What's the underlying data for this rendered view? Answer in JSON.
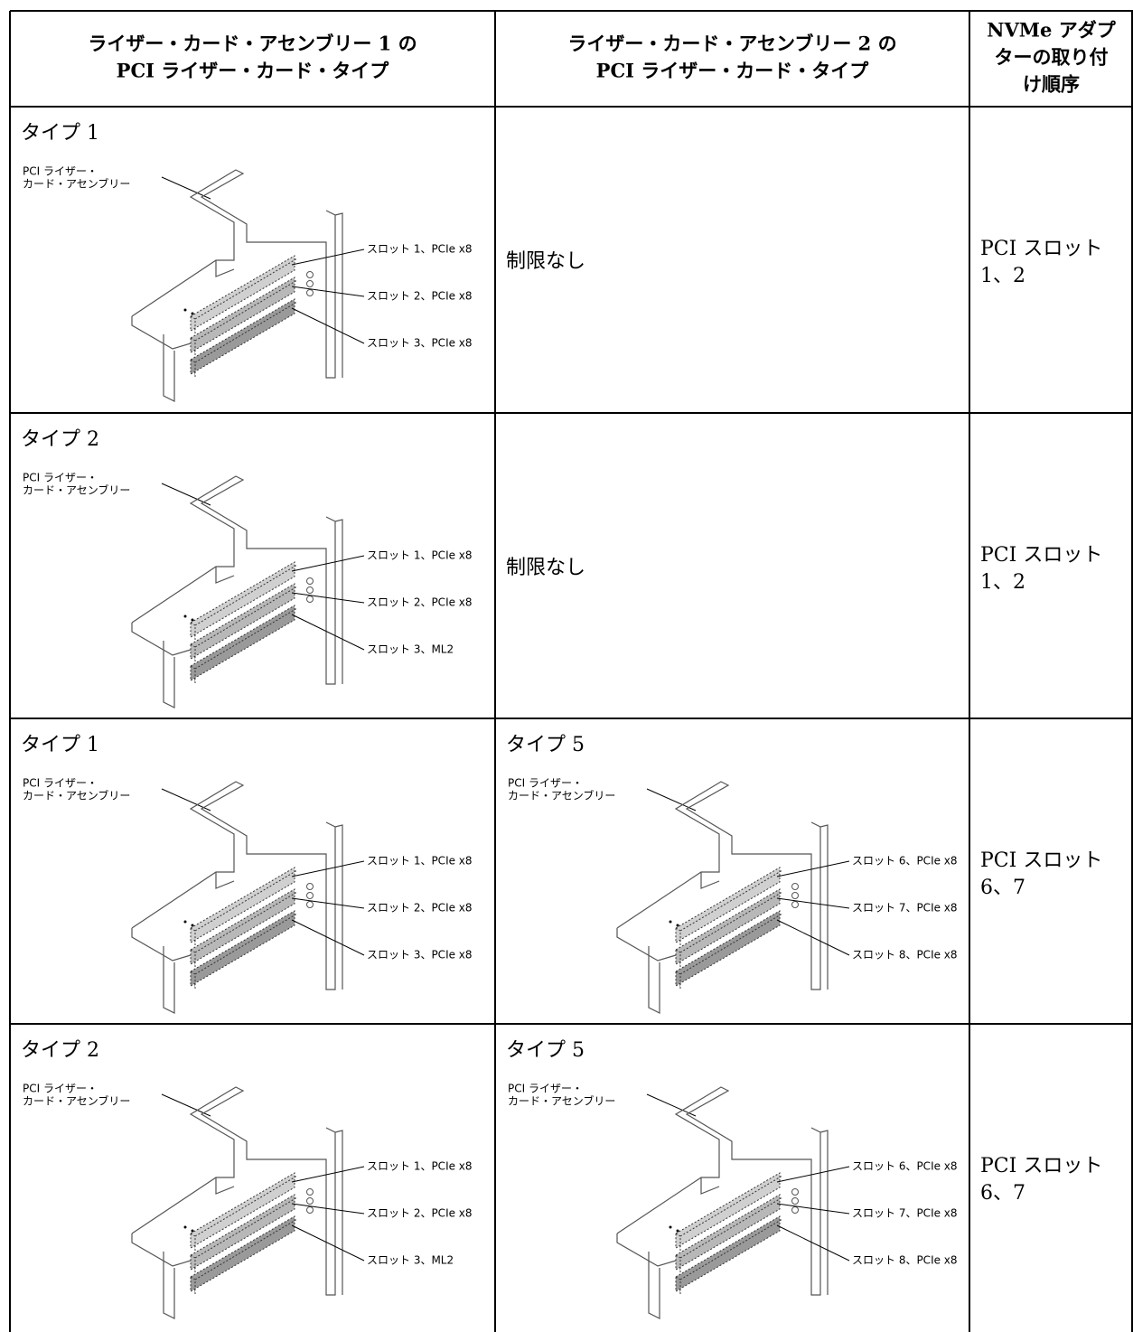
{
  "table": {
    "headers": [
      [
        "ライザー・カード・アセンブリー 1 の",
        "PCI ライザー・カード・タイプ"
      ],
      [
        "ライザー・カード・アセンブリー 2 の",
        "PCI ライザー・カード・タイプ"
      ],
      [
        "NVMe アダプ",
        "ターの取り付",
        "け順序"
      ]
    ],
    "rows": [
      [
        {
          "label": "タイプ 1",
          "callout": [
            "PCI ライザー・",
            "カード・アセンブリー"
          ],
          "slots": [
            "スロット 1、PCIe x8",
            "スロット 2、PCIe x8",
            "スロット 3、PCIe x8"
          ]
        },
        {
          "text": [
            "制限なし"
          ]
        },
        {
          "text": [
            "PCI スロット",
            "1、2"
          ]
        }
      ],
      [
        {
          "label": "タイプ 2",
          "callout": [
            "PCI ライザー・",
            "カード・アセンブリー"
          ],
          "slots": [
            "スロット 1、PCIe x8",
            "スロット 2、PCIe x8",
            "スロット 3、ML2"
          ]
        },
        {
          "text": [
            "制限なし"
          ]
        },
        {
          "text": [
            "PCI スロット",
            "1、2"
          ]
        }
      ],
      [
        {
          "label": "タイプ 1",
          "callout": [
            "PCI ライザー・",
            "カード・アセンブリー"
          ],
          "slots": [
            "スロット 1、PCIe x8",
            "スロット 2、PCIe x8",
            "スロット 3、PCIe x8"
          ]
        },
        {
          "label": "タイプ 5",
          "callout": [
            "PCI ライザー・",
            "カード・アセンブリー"
          ],
          "slots": [
            "スロット 6、PCIe x8",
            "スロット 7、PCIe x8",
            "スロット 8、PCIe x8"
          ]
        },
        {
          "text": [
            "PCI スロット",
            "6、7"
          ]
        }
      ],
      [
        {
          "label": "タイプ 2",
          "callout": [
            "PCI ライザー・",
            "カード・アセンブリー"
          ],
          "slots": [
            "スロット 1、PCIe x8",
            "スロット 2、PCIe x8",
            "スロット 3、ML2"
          ]
        },
        {
          "label": "タイプ 5",
          "callout": [
            "PCI ライザー・",
            "カード・アセンブリー"
          ],
          "slots": [
            "スロット 6、PCIe x8",
            "スロット 7、PCIe x8",
            "スロット 8、PCIe x8"
          ]
        },
        {
          "text": [
            "PCI スロット",
            "6、7"
          ]
        }
      ]
    ]
  }
}
